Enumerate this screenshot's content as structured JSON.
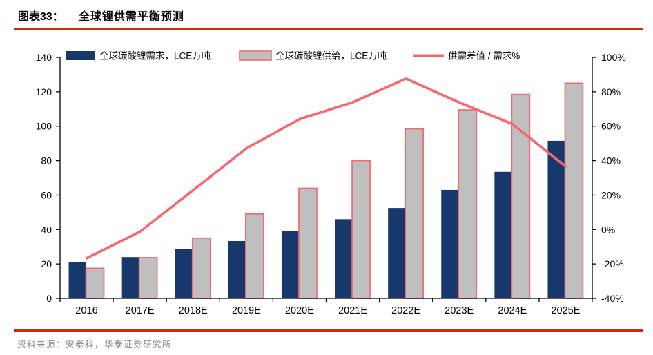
{
  "header": {
    "figure_label": "图表33：",
    "title": "全球锂供需平衡预测"
  },
  "footer": {
    "source": "资料来源：安泰科，华泰证券研究所"
  },
  "colors": {
    "demand_bar": "#17386d",
    "supply_bar_fill": "#bfbfbf",
    "supply_bar_border": "#f5696e",
    "ratio_line": "#f5696e",
    "rule_red": "#d8250c",
    "axis": "#000000",
    "source_text": "#848484"
  },
  "chart_data": {
    "type": "bar+line combo",
    "title": "全球锂供需平衡预测",
    "categories": [
      "2016",
      "2017E",
      "2018E",
      "2019E",
      "2020E",
      "2021E",
      "2022E",
      "2023E",
      "2024E",
      "2025E"
    ],
    "series": [
      {
        "name": "全球碳酸锂需求，LCE万吨",
        "type": "bar",
        "axis": "left",
        "values": [
          21,
          24,
          28.5,
          33.3,
          39,
          46,
          52.5,
          63,
          73.5,
          91.5
        ]
      },
      {
        "name": "全球碳酸锂供给，LCE万吨",
        "type": "bar",
        "axis": "left",
        "values": [
          17.5,
          23.7,
          35,
          49,
          64,
          80,
          98.5,
          109.5,
          118.5,
          125
        ]
      },
      {
        "name": "供需差值 / 需求%",
        "type": "line",
        "axis": "right",
        "values": [
          -16.7,
          -1.3,
          22.8,
          47.1,
          64.1,
          73.9,
          87.6,
          73.8,
          61.2,
          36.6
        ]
      }
    ],
    "left_axis": {
      "min": 0,
      "max": 140,
      "step": 20,
      "ticks": [
        "0",
        "20",
        "40",
        "60",
        "80",
        "100",
        "120",
        "140"
      ]
    },
    "right_axis": {
      "min": -40,
      "max": 100,
      "step": 20,
      "ticks": [
        "-40%",
        "-20%",
        "0%",
        "20%",
        "40%",
        "60%",
        "80%",
        "100%"
      ]
    },
    "legend_position": "top",
    "grid": false
  }
}
